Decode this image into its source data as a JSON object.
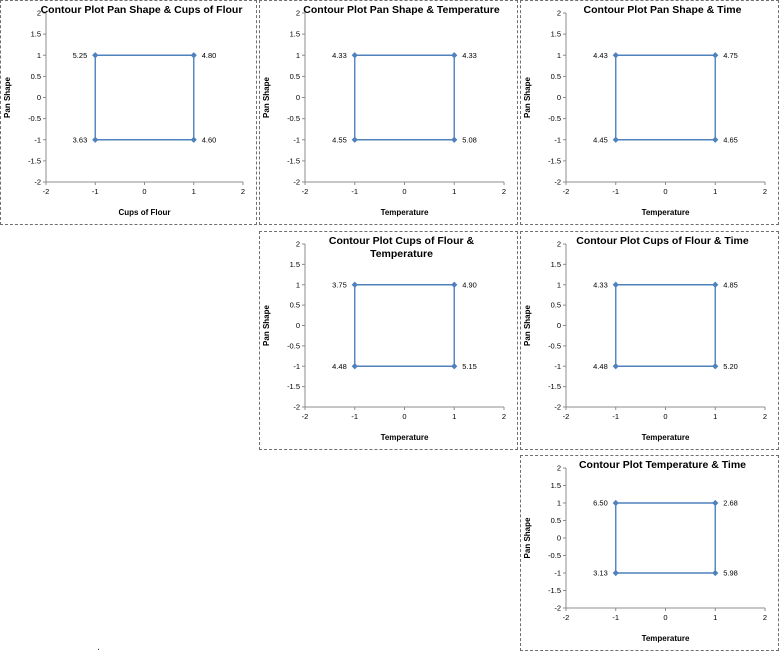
{
  "page": {
    "background": "#ffffff",
    "series_accent": "#4F81BD",
    "axis_color": "#8c8c8c"
  },
  "stray_mark": ".",
  "chart_data": [
    {
      "type": "scatter",
      "title": "Contour Plot Pan Shape & Cups of Flour",
      "xlabel": "Cups of Flour",
      "ylabel": "Pan Shape",
      "xlim": [
        -2,
        2
      ],
      "ylim": [
        -2,
        2
      ],
      "x_ticks": [
        -2,
        -1,
        0,
        1,
        2
      ],
      "y_ticks": [
        2,
        1.5,
        1,
        0.5,
        0,
        -0.5,
        -1,
        -1.5,
        -2
      ],
      "grid": false,
      "legend": "none",
      "series_color": "#4F81BD",
      "square": {
        "points": [
          [
            -1,
            1
          ],
          [
            1,
            1
          ],
          [
            1,
            -1
          ],
          [
            -1,
            -1
          ]
        ]
      },
      "corner_labels": [
        {
          "x": -1,
          "y": 1,
          "side": "left",
          "text": "5.25"
        },
        {
          "x": 1,
          "y": 1,
          "side": "right",
          "text": "4.80"
        },
        {
          "x": -1,
          "y": -1,
          "side": "left",
          "text": "3.63"
        },
        {
          "x": 1,
          "y": -1,
          "side": "right",
          "text": "4.60"
        }
      ]
    },
    {
      "type": "scatter",
      "title": "Contour Plot Pan Shape & Temperature",
      "xlabel": "Temperature",
      "ylabel": "Pan Shape",
      "xlim": [
        -2,
        2
      ],
      "ylim": [
        -2,
        2
      ],
      "x_ticks": [
        -2,
        -1,
        0,
        1,
        2
      ],
      "y_ticks": [
        2,
        1.5,
        1,
        0.5,
        0,
        -0.5,
        -1,
        -1.5,
        -2
      ],
      "grid": false,
      "legend": "none",
      "series_color": "#4F81BD",
      "square": {
        "points": [
          [
            -1,
            1
          ],
          [
            1,
            1
          ],
          [
            1,
            -1
          ],
          [
            -1,
            -1
          ]
        ]
      },
      "corner_labels": [
        {
          "x": -1,
          "y": 1,
          "side": "left",
          "text": "4.33"
        },
        {
          "x": 1,
          "y": 1,
          "side": "right",
          "text": "4.33"
        },
        {
          "x": -1,
          "y": -1,
          "side": "left",
          "text": "4.55"
        },
        {
          "x": 1,
          "y": -1,
          "side": "right",
          "text": "5.08"
        }
      ]
    },
    {
      "type": "scatter",
      "title": "Contour Plot Pan Shape & Time",
      "xlabel": "Temperature",
      "ylabel": "Pan Shape",
      "xlim": [
        -2,
        2
      ],
      "ylim": [
        -2,
        2
      ],
      "x_ticks": [
        -2,
        -1,
        0,
        1,
        2
      ],
      "y_ticks": [
        2,
        1.5,
        1,
        0.5,
        0,
        -0.5,
        -1,
        -1.5,
        -2
      ],
      "grid": false,
      "legend": "none",
      "series_color": "#4F81BD",
      "square": {
        "points": [
          [
            -1,
            1
          ],
          [
            1,
            1
          ],
          [
            1,
            -1
          ],
          [
            -1,
            -1
          ]
        ]
      },
      "corner_labels": [
        {
          "x": -1,
          "y": 1,
          "side": "left",
          "text": "4.43"
        },
        {
          "x": 1,
          "y": 1,
          "side": "right",
          "text": "4.75"
        },
        {
          "x": -1,
          "y": -1,
          "side": "left",
          "text": "4.45"
        },
        {
          "x": 1,
          "y": -1,
          "side": "right",
          "text": "4.65"
        }
      ]
    },
    {
      "type": "scatter",
      "title": "Contour Plot Cups of Flour & Temperature",
      "xlabel": "Temperature",
      "ylabel": "Pan Shape",
      "xlim": [
        -2,
        2
      ],
      "ylim": [
        -2,
        2
      ],
      "x_ticks": [
        -2,
        -1,
        0,
        1,
        2
      ],
      "y_ticks": [
        2,
        1.5,
        1,
        0.5,
        0,
        -0.5,
        -1,
        -1.5,
        -2
      ],
      "grid": false,
      "legend": "none",
      "series_color": "#4F81BD",
      "square": {
        "points": [
          [
            -1,
            1
          ],
          [
            1,
            1
          ],
          [
            1,
            -1
          ],
          [
            -1,
            -1
          ]
        ]
      },
      "corner_labels": [
        {
          "x": -1,
          "y": 1,
          "side": "left",
          "text": "3.75"
        },
        {
          "x": 1,
          "y": 1,
          "side": "right",
          "text": "4.90"
        },
        {
          "x": -1,
          "y": -1,
          "side": "left",
          "text": "4.48"
        },
        {
          "x": 1,
          "y": -1,
          "side": "right",
          "text": "5.15"
        }
      ]
    },
    {
      "type": "scatter",
      "title": "Contour Plot Cups of Flour & Time",
      "xlabel": "Temperature",
      "ylabel": "Pan Shape",
      "xlim": [
        -2,
        2
      ],
      "ylim": [
        -2,
        2
      ],
      "x_ticks": [
        -2,
        -1,
        0,
        1,
        2
      ],
      "y_ticks": [
        2,
        1.5,
        1,
        0.5,
        0,
        -0.5,
        -1,
        -1.5,
        -2
      ],
      "grid": false,
      "legend": "none",
      "series_color": "#4F81BD",
      "square": {
        "points": [
          [
            -1,
            1
          ],
          [
            1,
            1
          ],
          [
            1,
            -1
          ],
          [
            -1,
            -1
          ]
        ]
      },
      "corner_labels": [
        {
          "x": -1,
          "y": 1,
          "side": "left",
          "text": "4.33"
        },
        {
          "x": 1,
          "y": 1,
          "side": "right",
          "text": "4.85"
        },
        {
          "x": -1,
          "y": -1,
          "side": "left",
          "text": "4.48"
        },
        {
          "x": 1,
          "y": -1,
          "side": "right",
          "text": "5.20"
        }
      ]
    },
    {
      "type": "scatter",
      "title": "Contour Plot Temperature & Time",
      "xlabel": "Temperature",
      "ylabel": "Pan Shape",
      "xlim": [
        -2,
        2
      ],
      "ylim": [
        -2,
        2
      ],
      "x_ticks": [
        -2,
        -1,
        0,
        1,
        2
      ],
      "y_ticks": [
        2,
        1.5,
        1,
        0.5,
        0,
        -0.5,
        -1,
        -1.5,
        -2
      ],
      "grid": false,
      "legend": "none",
      "series_color": "#4F81BD",
      "square": {
        "points": [
          [
            -1,
            1
          ],
          [
            1,
            1
          ],
          [
            1,
            -1
          ],
          [
            -1,
            -1
          ]
        ]
      },
      "corner_labels": [
        {
          "x": -1,
          "y": 1,
          "side": "left",
          "text": "6.50"
        },
        {
          "x": 1,
          "y": 1,
          "side": "right",
          "text": "2.68"
        },
        {
          "x": -1,
          "y": -1,
          "side": "left",
          "text": "3.13"
        },
        {
          "x": 1,
          "y": -1,
          "side": "right",
          "text": "5.98"
        }
      ]
    }
  ]
}
